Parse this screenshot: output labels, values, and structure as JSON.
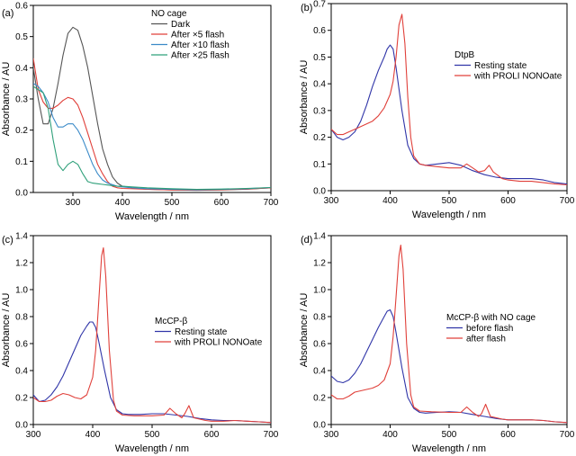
{
  "chart_data": [
    {
      "type": "line",
      "panel_label": "(a)",
      "xlabel": "Wavelength / nm",
      "ylabel": "Absorbance / AU",
      "xlim": [
        220,
        700
      ],
      "ylim": [
        0,
        0.6
      ],
      "xticks": [
        300,
        400,
        500,
        600,
        700
      ],
      "yticks": [
        0.0,
        0.1,
        0.2,
        0.3,
        0.4,
        0.5,
        0.6
      ],
      "legend_title": "NO cage",
      "legend_position": "top-right",
      "series": [
        {
          "name": "Dark",
          "color": "#555555",
          "x": [
            220,
            230,
            240,
            250,
            260,
            270,
            280,
            290,
            300,
            310,
            320,
            330,
            340,
            350,
            360,
            370,
            380,
            390,
            400,
            420,
            450,
            500,
            550,
            600,
            650,
            700
          ],
          "y": [
            0.4,
            0.3,
            0.22,
            0.22,
            0.27,
            0.35,
            0.44,
            0.51,
            0.53,
            0.52,
            0.47,
            0.4,
            0.31,
            0.22,
            0.14,
            0.09,
            0.05,
            0.03,
            0.02,
            0.015,
            0.01,
            0.008,
            0.007,
            0.008,
            0.01,
            0.015
          ]
        },
        {
          "name": "After ×5 flash",
          "color": "#e0403a",
          "x": [
            220,
            230,
            240,
            250,
            260,
            270,
            280,
            290,
            300,
            310,
            320,
            330,
            340,
            350,
            360,
            370,
            380,
            390,
            400,
            420,
            450,
            500,
            550,
            600,
            650,
            700
          ],
          "y": [
            0.43,
            0.33,
            0.29,
            0.27,
            0.27,
            0.28,
            0.295,
            0.305,
            0.3,
            0.28,
            0.24,
            0.19,
            0.14,
            0.09,
            0.06,
            0.035,
            0.02,
            0.015,
            0.013,
            0.012,
            0.01,
            0.008,
            0.008,
            0.009,
            0.011,
            0.015
          ]
        },
        {
          "name": "After ×10 flash",
          "color": "#3a8ac8",
          "x": [
            220,
            230,
            240,
            250,
            260,
            270,
            280,
            290,
            300,
            310,
            320,
            330,
            340,
            350,
            360,
            370,
            380,
            390,
            400,
            420,
            450,
            500,
            550,
            600,
            650,
            700
          ],
          "y": [
            0.35,
            0.34,
            0.32,
            0.29,
            0.24,
            0.21,
            0.21,
            0.22,
            0.22,
            0.2,
            0.17,
            0.13,
            0.09,
            0.06,
            0.04,
            0.03,
            0.025,
            0.02,
            0.018,
            0.015,
            0.012,
            0.01,
            0.009,
            0.01,
            0.012,
            0.016
          ]
        },
        {
          "name": "After ×25 flash",
          "color": "#2fa07a",
          "x": [
            220,
            230,
            240,
            250,
            260,
            270,
            280,
            290,
            300,
            310,
            320,
            330,
            340,
            350,
            360,
            370,
            380,
            390,
            400,
            420,
            450,
            500,
            550,
            600,
            650,
            700
          ],
          "y": [
            0.34,
            0.33,
            0.32,
            0.27,
            0.17,
            0.09,
            0.07,
            0.09,
            0.1,
            0.09,
            0.06,
            0.035,
            0.03,
            0.028,
            0.026,
            0.024,
            0.022,
            0.02,
            0.02,
            0.018,
            0.015,
            0.012,
            0.01,
            0.011,
            0.013,
            0.016
          ]
        }
      ]
    },
    {
      "type": "line",
      "panel_label": "(b)",
      "xlabel": "Wavelength / nm",
      "ylabel": "Absorbance / AU",
      "xlim": [
        300,
        700
      ],
      "ylim": [
        0,
        0.7
      ],
      "xticks": [
        300,
        400,
        500,
        600,
        700
      ],
      "yticks": [
        0.0,
        0.1,
        0.2,
        0.3,
        0.4,
        0.5,
        0.6,
        0.7
      ],
      "legend_title": "DtpB",
      "legend_position": "top-right",
      "series": [
        {
          "name": "Resting state",
          "color": "#3035a8",
          "x": [
            300,
            310,
            320,
            330,
            340,
            350,
            360,
            370,
            380,
            390,
            395,
            400,
            405,
            410,
            420,
            430,
            440,
            450,
            460,
            480,
            500,
            520,
            540,
            560,
            580,
            600,
            620,
            640,
            660,
            680,
            700
          ],
          "y": [
            0.23,
            0.2,
            0.19,
            0.2,
            0.22,
            0.26,
            0.32,
            0.39,
            0.45,
            0.5,
            0.53,
            0.545,
            0.53,
            0.46,
            0.3,
            0.17,
            0.12,
            0.1,
            0.095,
            0.1,
            0.105,
            0.095,
            0.075,
            0.06,
            0.05,
            0.045,
            0.045,
            0.045,
            0.04,
            0.03,
            0.025
          ]
        },
        {
          "name": "with PROLI NONOate",
          "color": "#e0403a",
          "x": [
            300,
            310,
            320,
            330,
            340,
            350,
            360,
            370,
            380,
            390,
            400,
            405,
            410,
            415,
            420,
            425,
            430,
            435,
            440,
            450,
            460,
            480,
            500,
            520,
            530,
            540,
            550,
            560,
            568,
            575,
            590,
            600,
            620,
            640,
            660,
            680,
            700
          ],
          "y": [
            0.23,
            0.21,
            0.21,
            0.22,
            0.23,
            0.24,
            0.25,
            0.26,
            0.28,
            0.31,
            0.36,
            0.41,
            0.5,
            0.62,
            0.66,
            0.55,
            0.35,
            0.2,
            0.13,
            0.1,
            0.095,
            0.09,
            0.085,
            0.085,
            0.1,
            0.085,
            0.07,
            0.075,
            0.095,
            0.07,
            0.045,
            0.04,
            0.035,
            0.035,
            0.03,
            0.025,
            0.022
          ]
        }
      ]
    },
    {
      "type": "line",
      "panel_label": "(c)",
      "xlabel": "Wavelength / nm",
      "ylabel": "Absorbance / AU",
      "xlim": [
        300,
        700
      ],
      "ylim": [
        0,
        1.4
      ],
      "xticks": [
        300,
        400,
        500,
        600,
        700
      ],
      "yticks": [
        0.0,
        0.2,
        0.4,
        0.6,
        0.8,
        1.0,
        1.2,
        1.4
      ],
      "legend_title": "McCP-β",
      "legend_position": "center-right",
      "series": [
        {
          "name": "Resting state",
          "color": "#3035a8",
          "x": [
            300,
            310,
            320,
            330,
            340,
            350,
            360,
            370,
            380,
            390,
            395,
            400,
            405,
            410,
            420,
            430,
            440,
            450,
            460,
            480,
            500,
            520,
            540,
            560,
            580,
            600,
            620,
            640,
            660,
            680,
            700
          ],
          "y": [
            0.22,
            0.17,
            0.18,
            0.22,
            0.28,
            0.36,
            0.46,
            0.56,
            0.66,
            0.73,
            0.76,
            0.76,
            0.72,
            0.62,
            0.4,
            0.2,
            0.11,
            0.08,
            0.075,
            0.075,
            0.08,
            0.08,
            0.07,
            0.06,
            0.045,
            0.035,
            0.03,
            0.03,
            0.025,
            0.02,
            0.015
          ]
        },
        {
          "name": "with PROLI NONOate",
          "color": "#e0403a",
          "x": [
            300,
            310,
            320,
            330,
            340,
            350,
            360,
            370,
            380,
            390,
            400,
            405,
            410,
            415,
            418,
            422,
            428,
            435,
            440,
            450,
            470,
            500,
            520,
            530,
            540,
            550,
            555,
            562,
            570,
            590,
            600,
            620,
            640,
            660,
            680,
            700
          ],
          "y": [
            0.2,
            0.17,
            0.17,
            0.18,
            0.21,
            0.23,
            0.22,
            0.2,
            0.19,
            0.22,
            0.35,
            0.55,
            0.9,
            1.25,
            1.31,
            1.1,
            0.55,
            0.18,
            0.1,
            0.07,
            0.065,
            0.065,
            0.07,
            0.12,
            0.08,
            0.05,
            0.08,
            0.14,
            0.05,
            0.03,
            0.025,
            0.025,
            0.03,
            0.025,
            0.02,
            0.015
          ]
        }
      ]
    },
    {
      "type": "line",
      "panel_label": "(d)",
      "xlabel": "Wavelength / nm",
      "ylabel": "Absorbance / AU",
      "xlim": [
        300,
        700
      ],
      "ylim": [
        0,
        1.4
      ],
      "xticks": [
        300,
        400,
        500,
        600,
        700
      ],
      "yticks": [
        0.0,
        0.2,
        0.4,
        0.6,
        0.8,
        1.0,
        1.2,
        1.4
      ],
      "legend_title": "McCP-β with NO cage",
      "legend_position": "center-right",
      "series": [
        {
          "name": "before flash",
          "color": "#3035a8",
          "x": [
            300,
            310,
            320,
            330,
            340,
            350,
            360,
            370,
            380,
            390,
            395,
            400,
            405,
            410,
            420,
            430,
            440,
            450,
            460,
            480,
            500,
            520,
            540,
            560,
            580,
            600,
            620,
            640,
            660,
            680,
            700
          ],
          "y": [
            0.36,
            0.32,
            0.31,
            0.33,
            0.38,
            0.45,
            0.54,
            0.63,
            0.72,
            0.8,
            0.84,
            0.85,
            0.8,
            0.68,
            0.42,
            0.2,
            0.12,
            0.09,
            0.085,
            0.09,
            0.095,
            0.09,
            0.075,
            0.06,
            0.045,
            0.035,
            0.035,
            0.035,
            0.03,
            0.02,
            0.015
          ]
        },
        {
          "name": "after flash",
          "color": "#e0403a",
          "x": [
            300,
            310,
            320,
            330,
            340,
            350,
            360,
            370,
            380,
            390,
            400,
            405,
            410,
            415,
            418,
            422,
            428,
            435,
            440,
            450,
            470,
            500,
            520,
            530,
            540,
            550,
            555,
            562,
            570,
            590,
            600,
            620,
            640,
            660,
            680,
            700
          ],
          "y": [
            0.22,
            0.19,
            0.19,
            0.21,
            0.24,
            0.25,
            0.26,
            0.27,
            0.29,
            0.33,
            0.45,
            0.65,
            0.95,
            1.25,
            1.33,
            1.15,
            0.6,
            0.22,
            0.13,
            0.1,
            0.095,
            0.09,
            0.09,
            0.13,
            0.09,
            0.06,
            0.08,
            0.15,
            0.06,
            0.04,
            0.035,
            0.035,
            0.035,
            0.03,
            0.02,
            0.015
          ]
        }
      ]
    }
  ]
}
